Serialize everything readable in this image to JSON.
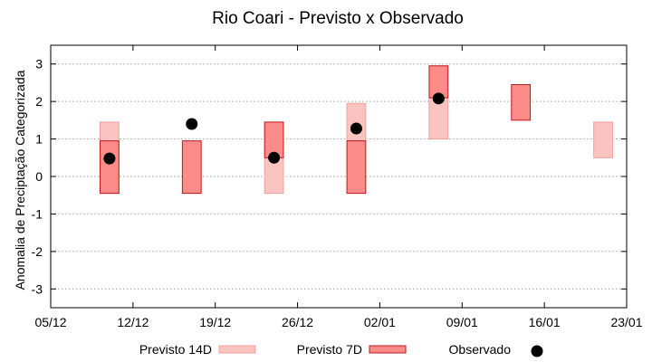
{
  "chart_data": {
    "type": "range-bar",
    "title": "Rio Coari - Previsto x Observado",
    "xlabel": "",
    "ylabel": "Anomalia de Preciptação Categorizada",
    "x_domain": [
      "2023-12-05",
      "2024-01-23"
    ],
    "xticks": [
      {
        "date": "2023-12-05",
        "label": "05/12"
      },
      {
        "date": "2023-12-12",
        "label": "12/12"
      },
      {
        "date": "2023-12-19",
        "label": "19/12"
      },
      {
        "date": "2023-12-26",
        "label": "26/12"
      },
      {
        "date": "2024-01-02",
        "label": "02/01"
      },
      {
        "date": "2024-01-09",
        "label": "09/01"
      },
      {
        "date": "2024-01-16",
        "label": "16/01"
      },
      {
        "date": "2024-01-23",
        "label": "23/01"
      }
    ],
    "ylim": [
      -3.5,
      3.5
    ],
    "yticks": [
      -3,
      -2,
      -1,
      0,
      1,
      2,
      3
    ],
    "grid": true,
    "legend_position": "bottom",
    "series": [
      {
        "name": "Previsto 14D",
        "kind": "range",
        "fill": "#fbc4c0",
        "stroke": "#f2a09a",
        "points": [
          {
            "date": "2023-12-10",
            "low": -0.45,
            "high": 1.45
          },
          {
            "date": "2023-12-24",
            "low": -0.45,
            "high": 1.45
          },
          {
            "date": "2023-12-31",
            "low": 0.95,
            "high": 1.95
          },
          {
            "date": "2024-01-07",
            "low": 1.0,
            "high": 2.95
          },
          {
            "date": "2024-01-21",
            "low": 0.5,
            "high": 1.45
          }
        ]
      },
      {
        "name": "Previsto 7D",
        "kind": "range",
        "fill": "#fb8c8a",
        "stroke": "#c0181c",
        "points": [
          {
            "date": "2023-12-10",
            "low": -0.45,
            "high": 0.95
          },
          {
            "date": "2023-12-17",
            "low": -0.45,
            "high": 0.95
          },
          {
            "date": "2023-12-24",
            "low": 0.5,
            "high": 1.45
          },
          {
            "date": "2023-12-31",
            "low": -0.45,
            "high": 0.95
          },
          {
            "date": "2024-01-07",
            "low": 2.1,
            "high": 2.95
          },
          {
            "date": "2024-01-14",
            "low": 1.5,
            "high": 2.45
          }
        ]
      },
      {
        "name": "Observado",
        "kind": "point",
        "color": "#000000",
        "points": [
          {
            "date": "2023-12-10",
            "value": 0.48
          },
          {
            "date": "2023-12-17",
            "value": 1.4
          },
          {
            "date": "2023-12-24",
            "value": 0.5
          },
          {
            "date": "2023-12-31",
            "value": 1.28
          },
          {
            "date": "2024-01-07",
            "value": 2.08
          }
        ]
      }
    ]
  }
}
